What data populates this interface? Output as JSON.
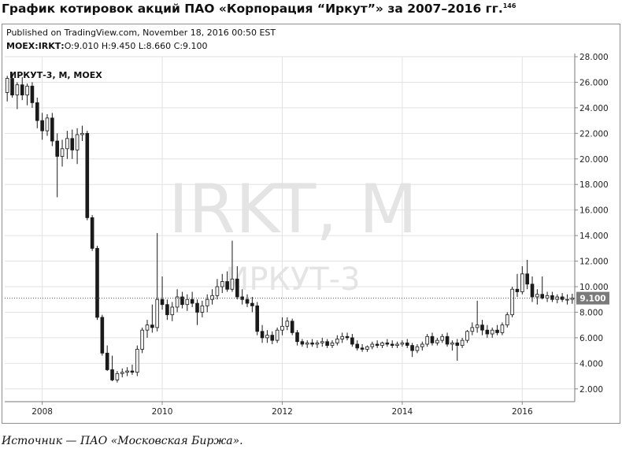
{
  "figure": {
    "heading": "График котировок акций ПАО «Корпорация “Иркут”» за 2007–2016 гг.",
    "footnote_mark": "146",
    "source": "Источник — ПАО «Московская Биржа»."
  },
  "header": {
    "published": "Published on TradingView.com, November 18, 2016 00:50 EST",
    "ticker": "MOEX:IRKT",
    "ohlc": "O:9.010 H:9.450 L:8.660 C:9.100"
  },
  "chart_data": {
    "type": "candlestick",
    "title": "ИРКУТ-3, М, MOEX",
    "watermark_main": "IRKT, M",
    "watermark_sub": "ИРКУТ-3",
    "ylim": [
      1.0,
      28.0
    ],
    "y_ticks": [
      2,
      4,
      6,
      8,
      10,
      12,
      14,
      16,
      18,
      20,
      22,
      24,
      26,
      28
    ],
    "y_tick_labels": [
      "2.000",
      "4.000",
      "6.000",
      "8.000",
      "10.000",
      "12.000",
      "14.000",
      "16.000",
      "18.000",
      "20.000",
      "22.000",
      "24.000",
      "26.000",
      "28.000"
    ],
    "x_start": "2007-06",
    "x_end": "2016-11",
    "x_ticks": [
      "2008-01",
      "2010-01",
      "2012-01",
      "2014-01",
      "2016-01"
    ],
    "x_tick_labels": [
      "2008",
      "2010",
      "2012",
      "2014",
      "2016"
    ],
    "last_price": 9.1,
    "last_price_label": "9.100",
    "grid": true,
    "candles": [
      {
        "t": "2007-06",
        "o": 25.2,
        "h": 26.5,
        "l": 24.5,
        "c": 26.3
      },
      {
        "t": "2007-07",
        "o": 26.3,
        "h": 26.8,
        "l": 24.8,
        "c": 25.0
      },
      {
        "t": "2007-08",
        "o": 25.0,
        "h": 26.0,
        "l": 23.9,
        "c": 25.8
      },
      {
        "t": "2007-09",
        "o": 25.8,
        "h": 26.4,
        "l": 24.6,
        "c": 25.0
      },
      {
        "t": "2007-10",
        "o": 25.0,
        "h": 25.9,
        "l": 24.2,
        "c": 25.7
      },
      {
        "t": "2007-11",
        "o": 25.7,
        "h": 26.0,
        "l": 24.0,
        "c": 24.4
      },
      {
        "t": "2007-12",
        "o": 24.4,
        "h": 24.8,
        "l": 22.4,
        "c": 23.0
      },
      {
        "t": "2008-01",
        "o": 23.0,
        "h": 23.6,
        "l": 21.5,
        "c": 22.2
      },
      {
        "t": "2008-02",
        "o": 22.2,
        "h": 23.5,
        "l": 21.8,
        "c": 23.2
      },
      {
        "t": "2008-03",
        "o": 23.2,
        "h": 23.6,
        "l": 21.0,
        "c": 21.4
      },
      {
        "t": "2008-04",
        "o": 21.4,
        "h": 22.0,
        "l": 17.0,
        "c": 20.2
      },
      {
        "t": "2008-05",
        "o": 20.2,
        "h": 21.5,
        "l": 19.4,
        "c": 20.8
      },
      {
        "t": "2008-06",
        "o": 20.8,
        "h": 22.2,
        "l": 20.0,
        "c": 21.6
      },
      {
        "t": "2008-07",
        "o": 21.6,
        "h": 22.3,
        "l": 20.0,
        "c": 20.7
      },
      {
        "t": "2008-08",
        "o": 20.7,
        "h": 22.4,
        "l": 19.6,
        "c": 21.9
      },
      {
        "t": "2008-09",
        "o": 21.9,
        "h": 22.6,
        "l": 21.4,
        "c": 22.0
      },
      {
        "t": "2008-10",
        "o": 22.0,
        "h": 22.2,
        "l": 15.2,
        "c": 15.4
      },
      {
        "t": "2008-11",
        "o": 15.4,
        "h": 15.6,
        "l": 12.8,
        "c": 13.0
      },
      {
        "t": "2008-12",
        "o": 13.0,
        "h": 13.2,
        "l": 7.4,
        "c": 7.6
      },
      {
        "t": "2009-01",
        "o": 7.6,
        "h": 7.8,
        "l": 4.6,
        "c": 4.8
      },
      {
        "t": "2009-02",
        "o": 4.8,
        "h": 5.4,
        "l": 3.4,
        "c": 3.5
      },
      {
        "t": "2009-03",
        "o": 3.5,
        "h": 4.6,
        "l": 2.6,
        "c": 2.7
      },
      {
        "t": "2009-04",
        "o": 2.7,
        "h": 3.4,
        "l": 2.5,
        "c": 3.2
      },
      {
        "t": "2009-05",
        "o": 3.2,
        "h": 3.6,
        "l": 2.9,
        "c": 3.3
      },
      {
        "t": "2009-06",
        "o": 3.3,
        "h": 3.7,
        "l": 3.0,
        "c": 3.4
      },
      {
        "t": "2009-07",
        "o": 3.4,
        "h": 3.9,
        "l": 3.1,
        "c": 3.3
      },
      {
        "t": "2009-08",
        "o": 3.3,
        "h": 5.4,
        "l": 3.0,
        "c": 5.1
      },
      {
        "t": "2009-09",
        "o": 5.1,
        "h": 6.8,
        "l": 4.8,
        "c": 6.6
      },
      {
        "t": "2009-10",
        "o": 6.6,
        "h": 7.4,
        "l": 6.0,
        "c": 7.0
      },
      {
        "t": "2009-11",
        "o": 7.0,
        "h": 8.6,
        "l": 6.4,
        "c": 6.8
      },
      {
        "t": "2009-12",
        "o": 6.8,
        "h": 14.2,
        "l": 6.5,
        "c": 9.0
      },
      {
        "t": "2010-01",
        "o": 9.0,
        "h": 10.8,
        "l": 8.2,
        "c": 8.6
      },
      {
        "t": "2010-02",
        "o": 8.6,
        "h": 9.0,
        "l": 7.4,
        "c": 7.8
      },
      {
        "t": "2010-03",
        "o": 7.8,
        "h": 8.8,
        "l": 7.3,
        "c": 8.4
      },
      {
        "t": "2010-04",
        "o": 8.4,
        "h": 9.8,
        "l": 8.0,
        "c": 9.2
      },
      {
        "t": "2010-05",
        "o": 9.2,
        "h": 9.6,
        "l": 8.3,
        "c": 8.6
      },
      {
        "t": "2010-06",
        "o": 8.6,
        "h": 9.4,
        "l": 8.1,
        "c": 9.0
      },
      {
        "t": "2010-07",
        "o": 9.0,
        "h": 9.6,
        "l": 8.4,
        "c": 8.7
      },
      {
        "t": "2010-08",
        "o": 8.7,
        "h": 9.0,
        "l": 7.0,
        "c": 8.0
      },
      {
        "t": "2010-09",
        "o": 8.0,
        "h": 8.9,
        "l": 7.6,
        "c": 8.5
      },
      {
        "t": "2010-10",
        "o": 8.5,
        "h": 9.4,
        "l": 8.0,
        "c": 9.0
      },
      {
        "t": "2010-11",
        "o": 9.0,
        "h": 9.8,
        "l": 8.6,
        "c": 9.3
      },
      {
        "t": "2010-12",
        "o": 9.3,
        "h": 10.6,
        "l": 9.0,
        "c": 10.0
      },
      {
        "t": "2011-01",
        "o": 10.0,
        "h": 11.0,
        "l": 9.5,
        "c": 10.4
      },
      {
        "t": "2011-02",
        "o": 10.4,
        "h": 11.2,
        "l": 9.6,
        "c": 9.8
      },
      {
        "t": "2011-03",
        "o": 9.8,
        "h": 13.6,
        "l": 9.6,
        "c": 10.6
      },
      {
        "t": "2011-04",
        "o": 10.6,
        "h": 11.6,
        "l": 9.0,
        "c": 9.2
      },
      {
        "t": "2011-05",
        "o": 9.2,
        "h": 9.8,
        "l": 8.6,
        "c": 9.0
      },
      {
        "t": "2011-06",
        "o": 9.0,
        "h": 9.4,
        "l": 8.4,
        "c": 8.7
      },
      {
        "t": "2011-07",
        "o": 8.7,
        "h": 9.2,
        "l": 8.0,
        "c": 8.5
      },
      {
        "t": "2011-08",
        "o": 8.5,
        "h": 8.8,
        "l": 6.2,
        "c": 6.5
      },
      {
        "t": "2011-09",
        "o": 6.5,
        "h": 7.0,
        "l": 5.6,
        "c": 6.0
      },
      {
        "t": "2011-10",
        "o": 6.0,
        "h": 6.6,
        "l": 5.6,
        "c": 6.2
      },
      {
        "t": "2011-11",
        "o": 6.2,
        "h": 6.5,
        "l": 5.5,
        "c": 5.8
      },
      {
        "t": "2011-12",
        "o": 5.8,
        "h": 6.8,
        "l": 5.6,
        "c": 6.6
      },
      {
        "t": "2012-01",
        "o": 6.6,
        "h": 7.6,
        "l": 6.2,
        "c": 6.9
      },
      {
        "t": "2012-02",
        "o": 6.9,
        "h": 7.6,
        "l": 6.6,
        "c": 7.3
      },
      {
        "t": "2012-03",
        "o": 7.3,
        "h": 7.5,
        "l": 6.2,
        "c": 6.4
      },
      {
        "t": "2012-04",
        "o": 6.4,
        "h": 6.6,
        "l": 5.4,
        "c": 5.7
      },
      {
        "t": "2012-05",
        "o": 5.7,
        "h": 5.9,
        "l": 5.3,
        "c": 5.5
      },
      {
        "t": "2012-06",
        "o": 5.5,
        "h": 5.8,
        "l": 5.2,
        "c": 5.6
      },
      {
        "t": "2012-07",
        "o": 5.6,
        "h": 5.9,
        "l": 5.3,
        "c": 5.5
      },
      {
        "t": "2012-08",
        "o": 5.5,
        "h": 5.8,
        "l": 5.2,
        "c": 5.6
      },
      {
        "t": "2012-09",
        "o": 5.6,
        "h": 6.0,
        "l": 5.3,
        "c": 5.7
      },
      {
        "t": "2012-10",
        "o": 5.7,
        "h": 5.9,
        "l": 5.2,
        "c": 5.4
      },
      {
        "t": "2012-11",
        "o": 5.4,
        "h": 5.8,
        "l": 5.2,
        "c": 5.6
      },
      {
        "t": "2012-12",
        "o": 5.6,
        "h": 6.2,
        "l": 5.4,
        "c": 5.9
      },
      {
        "t": "2013-01",
        "o": 5.9,
        "h": 6.4,
        "l": 5.6,
        "c": 6.1
      },
      {
        "t": "2013-02",
        "o": 6.1,
        "h": 6.4,
        "l": 5.8,
        "c": 6.0
      },
      {
        "t": "2013-03",
        "o": 6.0,
        "h": 6.3,
        "l": 5.3,
        "c": 5.5
      },
      {
        "t": "2013-04",
        "o": 5.5,
        "h": 5.8,
        "l": 5.0,
        "c": 5.2
      },
      {
        "t": "2013-05",
        "o": 5.2,
        "h": 5.5,
        "l": 4.9,
        "c": 5.1
      },
      {
        "t": "2013-06",
        "o": 5.1,
        "h": 5.4,
        "l": 4.9,
        "c": 5.3
      },
      {
        "t": "2013-07",
        "o": 5.3,
        "h": 5.7,
        "l": 5.1,
        "c": 5.5
      },
      {
        "t": "2013-08",
        "o": 5.5,
        "h": 5.8,
        "l": 5.2,
        "c": 5.4
      },
      {
        "t": "2013-09",
        "o": 5.4,
        "h": 5.7,
        "l": 5.2,
        "c": 5.6
      },
      {
        "t": "2013-10",
        "o": 5.6,
        "h": 5.9,
        "l": 5.3,
        "c": 5.5
      },
      {
        "t": "2013-11",
        "o": 5.5,
        "h": 5.8,
        "l": 5.2,
        "c": 5.4
      },
      {
        "t": "2013-12",
        "o": 5.4,
        "h": 5.7,
        "l": 5.2,
        "c": 5.5
      },
      {
        "t": "2014-01",
        "o": 5.5,
        "h": 5.8,
        "l": 5.3,
        "c": 5.6
      },
      {
        "t": "2014-02",
        "o": 5.6,
        "h": 5.9,
        "l": 5.2,
        "c": 5.4
      },
      {
        "t": "2014-03",
        "o": 5.4,
        "h": 5.6,
        "l": 4.5,
        "c": 5.0
      },
      {
        "t": "2014-04",
        "o": 5.0,
        "h": 5.5,
        "l": 4.8,
        "c": 5.3
      },
      {
        "t": "2014-05",
        "o": 5.3,
        "h": 5.7,
        "l": 5.0,
        "c": 5.5
      },
      {
        "t": "2014-06",
        "o": 5.5,
        "h": 6.3,
        "l": 5.3,
        "c": 6.1
      },
      {
        "t": "2014-07",
        "o": 6.1,
        "h": 6.4,
        "l": 5.4,
        "c": 5.6
      },
      {
        "t": "2014-08",
        "o": 5.6,
        "h": 6.0,
        "l": 5.4,
        "c": 5.8
      },
      {
        "t": "2014-09",
        "o": 5.8,
        "h": 6.3,
        "l": 5.6,
        "c": 6.1
      },
      {
        "t": "2014-10",
        "o": 6.1,
        "h": 6.4,
        "l": 5.3,
        "c": 5.5
      },
      {
        "t": "2014-11",
        "o": 5.5,
        "h": 5.8,
        "l": 5.0,
        "c": 5.6
      },
      {
        "t": "2014-12",
        "o": 5.6,
        "h": 5.9,
        "l": 4.2,
        "c": 5.4
      },
      {
        "t": "2015-01",
        "o": 5.4,
        "h": 6.0,
        "l": 5.2,
        "c": 5.8
      },
      {
        "t": "2015-02",
        "o": 5.8,
        "h": 6.6,
        "l": 5.6,
        "c": 6.5
      },
      {
        "t": "2015-03",
        "o": 6.5,
        "h": 7.2,
        "l": 6.2,
        "c": 6.8
      },
      {
        "t": "2015-04",
        "o": 6.8,
        "h": 8.9,
        "l": 6.4,
        "c": 7.0
      },
      {
        "t": "2015-05",
        "o": 7.0,
        "h": 7.4,
        "l": 6.2,
        "c": 6.6
      },
      {
        "t": "2015-06",
        "o": 6.6,
        "h": 7.0,
        "l": 6.0,
        "c": 6.3
      },
      {
        "t": "2015-07",
        "o": 6.3,
        "h": 6.8,
        "l": 6.0,
        "c": 6.6
      },
      {
        "t": "2015-08",
        "o": 6.6,
        "h": 7.0,
        "l": 6.2,
        "c": 6.4
      },
      {
        "t": "2015-09",
        "o": 6.4,
        "h": 7.2,
        "l": 6.2,
        "c": 7.0
      },
      {
        "t": "2015-10",
        "o": 7.0,
        "h": 8.0,
        "l": 6.8,
        "c": 7.8
      },
      {
        "t": "2015-11",
        "o": 7.8,
        "h": 10.0,
        "l": 7.6,
        "c": 9.8
      },
      {
        "t": "2015-12",
        "o": 9.8,
        "h": 11.0,
        "l": 9.2,
        "c": 9.6
      },
      {
        "t": "2016-01",
        "o": 9.6,
        "h": 11.6,
        "l": 9.4,
        "c": 11.0
      },
      {
        "t": "2016-02",
        "o": 11.0,
        "h": 12.1,
        "l": 9.8,
        "c": 10.2
      },
      {
        "t": "2016-03",
        "o": 10.2,
        "h": 10.8,
        "l": 8.8,
        "c": 9.2
      },
      {
        "t": "2016-04",
        "o": 9.2,
        "h": 9.8,
        "l": 8.6,
        "c": 9.4
      },
      {
        "t": "2016-05",
        "o": 9.4,
        "h": 10.8,
        "l": 9.0,
        "c": 9.1
      },
      {
        "t": "2016-06",
        "o": 9.1,
        "h": 9.6,
        "l": 8.8,
        "c": 9.3
      },
      {
        "t": "2016-07",
        "o": 9.3,
        "h": 9.6,
        "l": 8.8,
        "c": 9.0
      },
      {
        "t": "2016-08",
        "o": 9.0,
        "h": 9.4,
        "l": 8.7,
        "c": 9.2
      },
      {
        "t": "2016-09",
        "o": 9.2,
        "h": 9.5,
        "l": 8.8,
        "c": 9.0
      },
      {
        "t": "2016-10",
        "o": 9.0,
        "h": 9.4,
        "l": 8.6,
        "c": 9.01
      },
      {
        "t": "2016-11",
        "o": 9.01,
        "h": 9.45,
        "l": 8.66,
        "c": 9.1
      }
    ],
    "colors": {
      "up": "#f2f2f2",
      "down": "#1a1a1a",
      "wick": "#1a1a1a",
      "grid": "#e2e2e2",
      "watermark": "#e4e4e4"
    }
  }
}
